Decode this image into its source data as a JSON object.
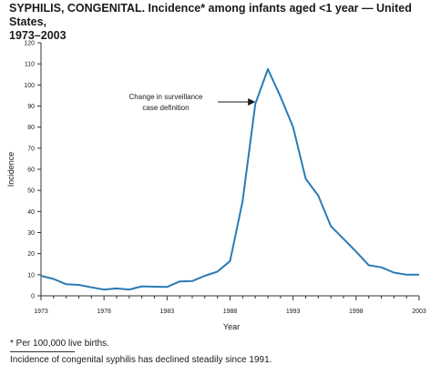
{
  "title_line1": "SYPHILIS, CONGENITAL. Incidence* among infants aged <1 year — United States,",
  "title_line2": "1973–2003",
  "footnote": "* Per 100,000 live births.",
  "caption": "Incidence of congenital syphilis has declined steadily since 1991.",
  "colors": {
    "line": "#2a7bb5",
    "axis": "#333333",
    "text": "#1a1a1a"
  },
  "chart_data": {
    "type": "line",
    "xlabel": "Year",
    "ylabel": "Incidence",
    "xlim": [
      1973,
      2003
    ],
    "ylim": [
      0,
      120
    ],
    "x_ticks": [
      1973,
      1978,
      1983,
      1988,
      1993,
      1998,
      2003
    ],
    "y_ticks": [
      0,
      10,
      20,
      30,
      40,
      50,
      60,
      70,
      80,
      90,
      100,
      110,
      120
    ],
    "grid": false,
    "x": [
      1973,
      1974,
      1975,
      1976,
      1977,
      1978,
      1979,
      1980,
      1981,
      1982,
      1983,
      1984,
      1985,
      1986,
      1987,
      1988,
      1989,
      1990,
      1991,
      1992,
      1993,
      1994,
      1995,
      1996,
      1997,
      1998,
      1999,
      2000,
      2001,
      2002,
      2003
    ],
    "values": [
      9.5,
      8.0,
      5.5,
      5.2,
      4.0,
      3.0,
      3.5,
      3.0,
      4.5,
      4.3,
      4.2,
      6.8,
      7.0,
      9.5,
      11.5,
      16.5,
      45.0,
      91.0,
      107.5,
      94.5,
      80.0,
      55.5,
      47.5,
      33.0,
      27.0,
      21.0,
      14.5,
      13.5,
      11.0,
      10.0,
      10.0
    ],
    "annotation": {
      "text_line1": "Change in surveillance",
      "text_line2": "case definition",
      "points_to_year": 1990
    }
  }
}
